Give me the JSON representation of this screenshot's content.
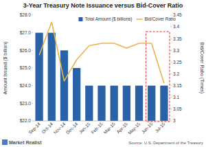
{
  "chart_data": {
    "type": "bar",
    "title": "3-Year Treasury Note Issuance versus Bid-Cover Ratio",
    "categories": [
      "Sep-14",
      "Oct-14",
      "Nov-14",
      "Dec-14",
      "Jan-15",
      "Feb-15",
      "Mar-15",
      "Apr-15",
      "May-15",
      "Jun-15",
      "Jul-15"
    ],
    "series": [
      {
        "name": "Total Amount ($ billions)",
        "type": "bar",
        "color": "#2a62a8",
        "values": [
          27,
          27,
          26,
          25,
          24,
          24,
          24,
          24,
          24,
          24,
          24
        ]
      },
      {
        "name": "Bid/Cover Ratio",
        "type": "line",
        "axis": "y2",
        "color": "#e6b54a",
        "values": [
          3.28,
          3.42,
          3.17,
          3.26,
          3.32,
          3.33,
          3.33,
          3.31,
          3.33,
          3.33,
          3.16
        ]
      }
    ],
    "y_label": "Amount Issued ($ billion)",
    "y2_label": "Bid/Cover Ratio (Times)",
    "ylim": [
      22,
      28
    ],
    "yticks": [
      {
        "value": 22,
        "label": "$22.0"
      },
      {
        "value": 23,
        "label": "$23.0"
      },
      {
        "value": 24,
        "label": "$24.0"
      },
      {
        "value": 25,
        "label": "$25.0"
      },
      {
        "value": 26,
        "label": "$26.0"
      },
      {
        "value": 27,
        "label": "$27.0"
      },
      {
        "value": 28,
        "label": "$28.0"
      }
    ],
    "y2lim": [
      3,
      3.45
    ],
    "y2ticks": [
      3,
      3.05,
      3.1,
      3.15,
      3.2,
      3.25,
      3.3,
      3.35,
      3.4,
      3.45
    ],
    "grid": false,
    "legend": "upper right",
    "source": "Source: U.S. Department of the Treasury",
    "brand": "Market Realist"
  }
}
